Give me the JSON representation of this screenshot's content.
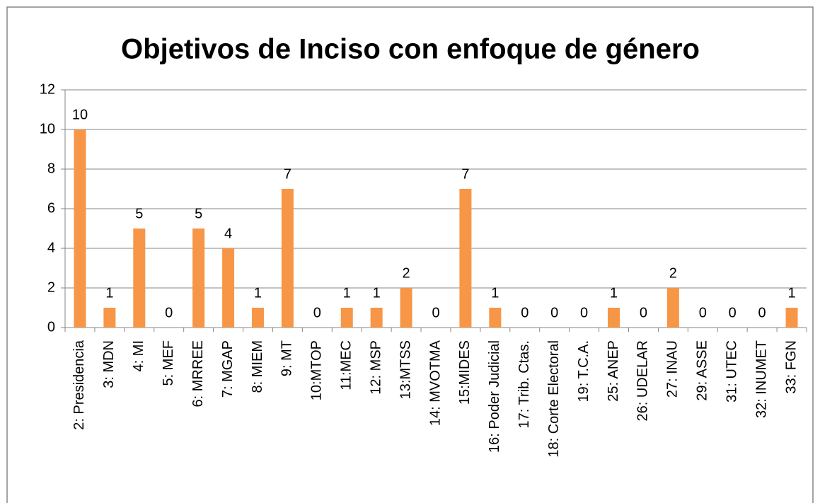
{
  "chart_data": {
    "type": "bar",
    "title": "Objetivos de Inciso con enfoque de género",
    "categories": [
      "2: Presidencia",
      "3: MDN",
      "4: MI",
      "5: MEF",
      "6: MRREE",
      "7: MGAP",
      "8: MIEM",
      "9: MT",
      "10:MTOP",
      "11:MEC",
      "12: MSP",
      "13:MTSS",
      "14: MVOTMA",
      "15:MIDES",
      "16: Poder Judicial",
      "17: Trib. Ctas.",
      "18: Corte Electoral",
      "19: T.C.A.",
      "25: ANEP",
      "26: UDELAR",
      "27: INAU",
      "29: ASSE",
      "31: UTEC",
      "32: INUMET",
      "33: FGN"
    ],
    "values": [
      10,
      1,
      5,
      0,
      5,
      4,
      1,
      7,
      0,
      1,
      1,
      2,
      0,
      7,
      1,
      0,
      0,
      0,
      1,
      0,
      2,
      0,
      0,
      0,
      1
    ],
    "color": "#f79646",
    "ylim": [
      0,
      12
    ],
    "yticks": [
      0,
      2,
      4,
      6,
      8,
      10,
      12
    ],
    "grid": true
  }
}
